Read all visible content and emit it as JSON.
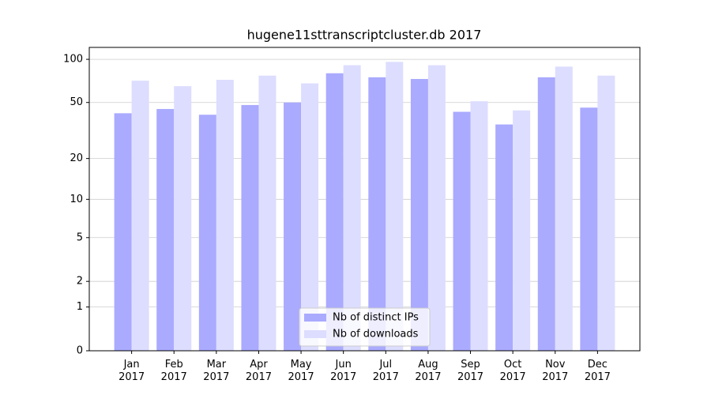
{
  "chart_data": {
    "type": "bar",
    "title": "hugene11sttranscriptcluster.db 2017",
    "categories": [
      "Jan\n2017",
      "Feb\n2017",
      "Mar\n2017",
      "Apr\n2017",
      "May\n2017",
      "Jun\n2017",
      "Jul\n2017",
      "Aug\n2017",
      "Sep\n2017",
      "Oct\n2017",
      "Nov\n2017",
      "Dec\n2017"
    ],
    "series": [
      {
        "name": "Nb of distinct IPs",
        "color": "#aaaaff",
        "values": [
          42,
          45,
          41,
          48,
          50,
          80,
          75,
          73,
          43,
          35,
          75,
          46
        ]
      },
      {
        "name": "Nb of downloads",
        "color": "#ddddff",
        "values": [
          71,
          65,
          72,
          77,
          68,
          91,
          96,
          91,
          51,
          44,
          89,
          77
        ]
      }
    ],
    "yscale": "log1p",
    "ylim": [
      0,
      121
    ],
    "yticks": [
      0,
      1,
      2,
      5,
      10,
      20,
      50,
      100
    ],
    "grid": true,
    "legend": "lower center"
  }
}
